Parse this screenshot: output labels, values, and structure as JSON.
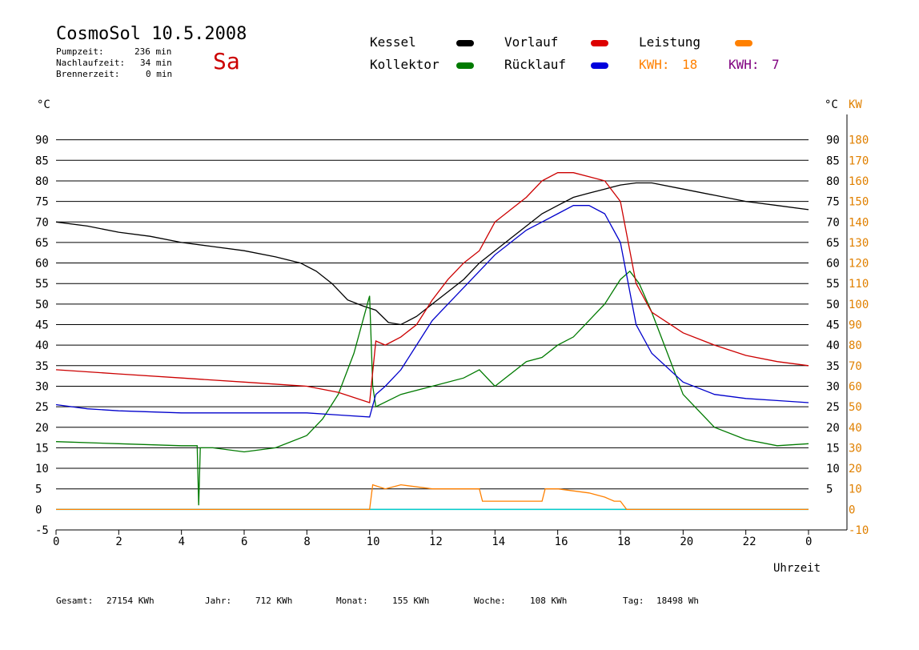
{
  "header": {
    "title": "CosmoSol 10.5.2008",
    "day": "Sa",
    "stats": [
      {
        "label": "Pumpzeit:",
        "value": "236 min"
      },
      {
        "label": "Nachlaufzeit:",
        "value": "34 min"
      },
      {
        "label": "Brennerzeit:",
        "value": "0 min"
      }
    ]
  },
  "legend": {
    "kessel": "Kessel",
    "kollektor": "Kollektor",
    "vorlauf": "Vorlauf",
    "ruecklauf": "Rücklauf",
    "leistung": "Leistung",
    "kwh1_label": "KWH:",
    "kwh1_value": "18",
    "kwh2_label": "KWH:",
    "kwh2_value": "7"
  },
  "colors": {
    "kessel": "#000000",
    "kollektor": "#007a00",
    "vorlauf": "#cc0000",
    "ruecklauf": "#0000cc",
    "leistung": "#ff8000",
    "kwh2": "#800080",
    "zero": "#00cccc"
  },
  "footer": {
    "gesamt_label": "Gesamt:",
    "gesamt_value": "27154 KWh",
    "jahr_label": "Jahr:",
    "jahr_value": "712 KWh",
    "monat_label": "Monat:",
    "monat_value": "155 KWh",
    "woche_label": "Woche:",
    "woche_value": "108 KWh",
    "tag_label": "Tag:",
    "tag_value": "18498 Wh"
  },
  "chart_data": {
    "type": "line",
    "xlabel": "Uhrzeit",
    "ylabel": "°C",
    "y2label": "KW",
    "xlim": [
      0,
      24
    ],
    "ylim": [
      -5,
      95
    ],
    "x_ticks": [
      "0",
      "2",
      "4",
      "6",
      "8",
      "10",
      "12",
      "14",
      "16",
      "18",
      "20",
      "22",
      "0"
    ],
    "y_ticks": [
      90,
      85,
      80,
      75,
      70,
      65,
      60,
      55,
      50,
      45,
      40,
      35,
      30,
      25,
      20,
      15,
      10,
      5,
      0,
      -5
    ],
    "y_ticks_right": [
      90,
      85,
      80,
      75,
      70,
      65,
      60,
      55,
      50,
      45,
      40,
      35,
      30,
      25,
      20,
      15,
      10,
      5
    ],
    "y2_ticks": [
      180,
      170,
      160,
      150,
      140,
      130,
      120,
      110,
      100,
      90,
      80,
      70,
      60,
      50,
      40,
      30,
      20,
      10,
      0,
      -10
    ],
    "grid": true,
    "series": [
      {
        "name": "Kessel",
        "x": [
          0,
          1,
          2,
          3,
          4,
          5,
          6,
          7,
          7.8,
          8.3,
          8.8,
          9.3,
          9.8,
          10.2,
          10.6,
          11,
          11.5,
          12,
          12.5,
          13,
          13.5,
          14,
          14.5,
          15,
          15.5,
          16,
          16.5,
          17,
          17.5,
          18,
          18.5,
          19,
          20,
          21,
          22,
          23,
          24
        ],
        "values": [
          70,
          69,
          67.5,
          66.5,
          65,
          64,
          63,
          61.5,
          60,
          58,
          55,
          51,
          49.5,
          48.5,
          45.5,
          45,
          47,
          50,
          53,
          56,
          60,
          63,
          66,
          69,
          72,
          74,
          76,
          77,
          78,
          79,
          79.5,
          79.5,
          78,
          76.5,
          75,
          74,
          73
        ]
      },
      {
        "name": "Kollektor",
        "x": [
          0,
          2,
          4,
          4.5,
          4.55,
          4.6,
          5,
          6,
          7,
          8,
          8.5,
          9,
          9.5,
          10,
          10.1,
          10.2,
          11,
          12,
          13,
          13.5,
          14,
          14.5,
          15,
          15.5,
          16,
          16.5,
          17,
          17.5,
          18,
          18.3,
          18.6,
          19,
          19.5,
          20,
          21,
          22,
          23,
          24
        ],
        "values": [
          16.5,
          16,
          15.5,
          15.5,
          1,
          15,
          15,
          14,
          15,
          18,
          22,
          28,
          38,
          52,
          30,
          25,
          28,
          30,
          32,
          34,
          30,
          33,
          36,
          37,
          40,
          42,
          46,
          50,
          56,
          58,
          55,
          48,
          38,
          28,
          20,
          17,
          15.5,
          16
        ]
      },
      {
        "name": "Vorlauf",
        "x": [
          0,
          2,
          4,
          6,
          8,
          9,
          10,
          10.2,
          10.5,
          11,
          11.5,
          12,
          12.5,
          13,
          13.5,
          14,
          14.5,
          15,
          15.5,
          16,
          16.5,
          17,
          17.5,
          18,
          18.5,
          19,
          20,
          21,
          22,
          23,
          24
        ],
        "values": [
          34,
          33,
          32,
          31,
          30,
          28.5,
          26,
          41,
          40,
          42,
          45,
          51,
          56,
          60,
          63,
          70,
          73,
          76,
          80,
          82,
          82,
          81,
          80,
          75,
          55,
          48,
          43,
          40,
          37.5,
          36,
          35
        ]
      },
      {
        "name": "Rücklauf",
        "x": [
          0,
          1,
          2,
          4,
          6,
          8,
          9,
          10,
          10.2,
          10.5,
          11,
          11.5,
          12,
          12.5,
          13,
          13.5,
          14,
          14.5,
          15,
          15.5,
          16,
          16.5,
          17,
          17.5,
          18,
          18.5,
          19,
          20,
          21,
          22,
          23,
          24
        ],
        "values": [
          25.5,
          24.5,
          24,
          23.5,
          23.5,
          23.5,
          23,
          22.5,
          28,
          30,
          34,
          40,
          46,
          50,
          54,
          58,
          62,
          65,
          68,
          70,
          72,
          74,
          74,
          72,
          65,
          45,
          38,
          31,
          28,
          27,
          26.5,
          26
        ]
      },
      {
        "name": "Leistung",
        "x": [
          0,
          10,
          10.1,
          10.5,
          11,
          12,
          13,
          13.5,
          13.6,
          14,
          15,
          15.5,
          15.6,
          16,
          17,
          17.5,
          17.8,
          18,
          18.2,
          24
        ],
        "values": [
          0,
          0,
          6,
          5,
          6,
          5,
          5,
          5,
          2,
          2,
          2,
          2,
          5,
          5,
          4,
          3,
          2,
          2,
          0,
          0
        ]
      }
    ]
  }
}
